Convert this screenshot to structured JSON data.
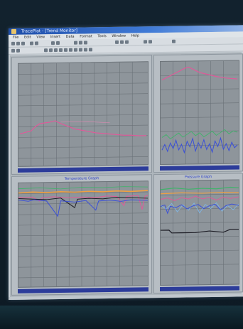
{
  "window": {
    "title": "TracePlot - [Trend Monitor]",
    "menu": [
      "File",
      "Edit",
      "View",
      "Insert",
      "Data",
      "Format",
      "Tools",
      "Window",
      "Help"
    ]
  },
  "panels": [
    {
      "id": "top-left",
      "title": ""
    },
    {
      "id": "top-right",
      "title": ""
    },
    {
      "id": "bottom-left",
      "title": "Temperature Graph"
    },
    {
      "id": "bottom-right",
      "title": "Pressure Graph"
    }
  ],
  "colors": {
    "pink": "#e05a9a",
    "green": "#3fb36a",
    "blue": "#3a4fd8",
    "orange": "#f0a040",
    "black": "#1c1c24",
    "navy": "#2c3c9a"
  }
}
